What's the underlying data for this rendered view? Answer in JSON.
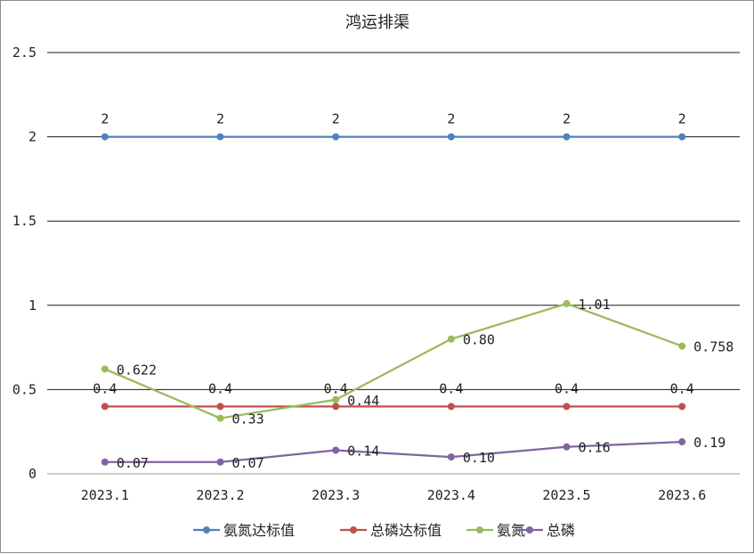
{
  "chart_data": {
    "type": "line",
    "title": "鸿运排渠",
    "xlabel": "",
    "ylabel": "",
    "categories": [
      "2023.1",
      "2023.2",
      "2023.3",
      "2023.4",
      "2023.5",
      "2023.6"
    ],
    "y_ticks": [
      "0",
      "0.5",
      "1",
      "1.5",
      "2",
      "2.5"
    ],
    "ylim": [
      0,
      2.5
    ],
    "grid": true,
    "legend_position": "bottom",
    "series": [
      {
        "name": "氨氮达标值",
        "color": "#4f81bd",
        "values": [
          2,
          2,
          2,
          2,
          2,
          2
        ],
        "labels": [
          "2",
          "2",
          "2",
          "2",
          "2",
          "2"
        ],
        "label_position": "above"
      },
      {
        "name": "总磷达标值",
        "color": "#c0504d",
        "values": [
          0.4,
          0.4,
          0.4,
          0.4,
          0.4,
          0.4
        ],
        "labels": [
          "0.4",
          "0.4",
          "0.4",
          "0.4",
          "0.4",
          "0.4"
        ],
        "label_position": "above"
      },
      {
        "name": "氨氮",
        "color": "#9bbb59",
        "values": [
          0.622,
          0.33,
          0.44,
          0.8,
          1.01,
          0.758
        ],
        "labels": [
          "0.622",
          "0.33",
          "0.44",
          "0.80",
          "1.01",
          "0.758"
        ],
        "label_position": "right"
      },
      {
        "name": "总磷",
        "color": "#8064a2",
        "values": [
          0.07,
          0.07,
          0.14,
          0.1,
          0.16,
          0.19
        ],
        "labels": [
          "0.07",
          "0.07",
          "0.14",
          "0.10",
          "0.16",
          "0.19"
        ],
        "label_position": "right"
      }
    ]
  }
}
